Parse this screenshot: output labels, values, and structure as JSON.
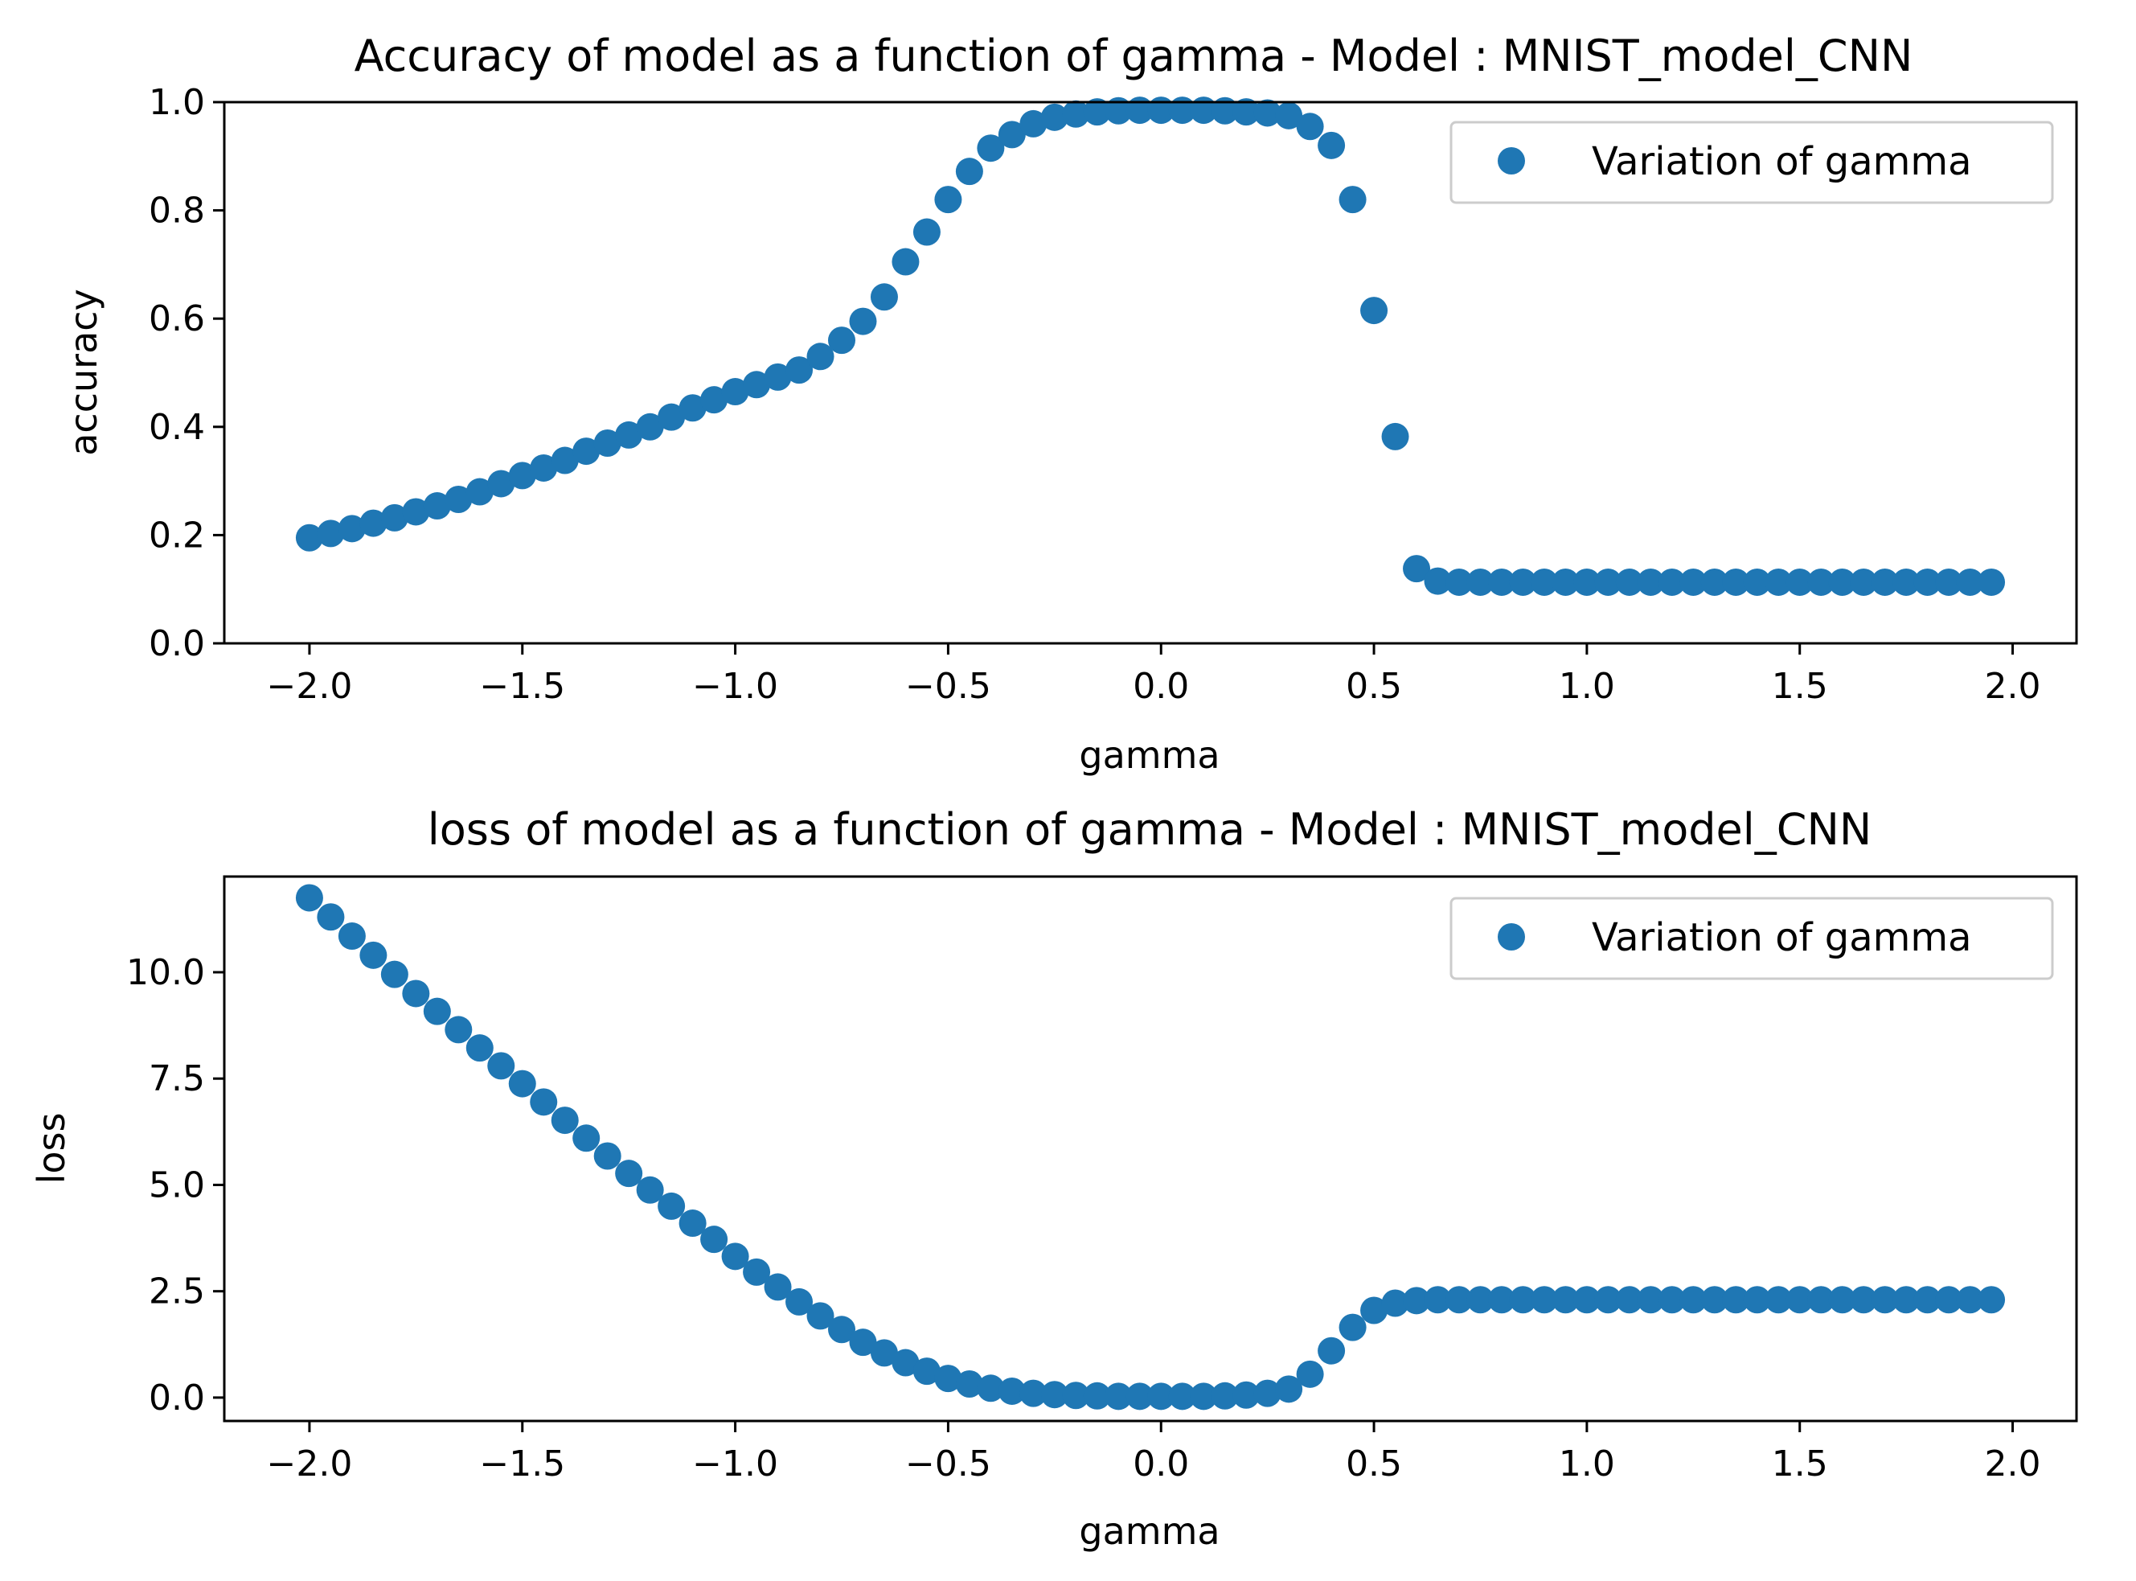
{
  "marker_color": "#1f77b4",
  "chart_data": [
    {
      "type": "scatter",
      "title": "Accuracy of model as a function of gamma - Model : MNIST_model_CNN",
      "xlabel": "gamma",
      "ylabel": "accuracy",
      "xlim": [
        -2.2,
        2.15
      ],
      "ylim": [
        0.0,
        1.0
      ],
      "xticks": [
        -2.0,
        -1.5,
        -1.0,
        -0.5,
        0.0,
        0.5,
        1.0,
        1.5,
        2.0
      ],
      "xtick_labels": [
        "−2.0",
        "−1.5",
        "−1.0",
        "−0.5",
        "0.0",
        "0.5",
        "1.0",
        "1.5",
        "2.0"
      ],
      "yticks": [
        0.0,
        0.2,
        0.4,
        0.6,
        0.8,
        1.0
      ],
      "ytick_labels": [
        "0.0",
        "0.2",
        "0.4",
        "0.6",
        "0.8",
        "1.0"
      ],
      "grid": false,
      "legend_position": "top-right",
      "series": [
        {
          "name": "Variation of gamma",
          "x": [
            -2.0,
            -1.95,
            -1.9,
            -1.85,
            -1.8,
            -1.75,
            -1.7,
            -1.65,
            -1.6,
            -1.55,
            -1.5,
            -1.45,
            -1.4,
            -1.35,
            -1.3,
            -1.25,
            -1.2,
            -1.15,
            -1.1,
            -1.05,
            -1.0,
            -0.95,
            -0.9,
            -0.85,
            -0.8,
            -0.75,
            -0.7,
            -0.65,
            -0.6,
            -0.55,
            -0.5,
            -0.45,
            -0.4,
            -0.35,
            -0.3,
            -0.25,
            -0.2,
            -0.15,
            -0.1,
            -0.05,
            0.0,
            0.05,
            0.1,
            0.15,
            0.2,
            0.25,
            0.3,
            0.35,
            0.4,
            0.45,
            0.5,
            0.55,
            0.6,
            0.65,
            0.7,
            0.75,
            0.8,
            0.85,
            0.9,
            0.95,
            1.0,
            1.05,
            1.1,
            1.15,
            1.2,
            1.25,
            1.3,
            1.35,
            1.4,
            1.45,
            1.5,
            1.55,
            1.6,
            1.65,
            1.7,
            1.75,
            1.8,
            1.85,
            1.9,
            1.95
          ],
          "y": [
            0.195,
            0.203,
            0.212,
            0.222,
            0.232,
            0.243,
            0.254,
            0.266,
            0.28,
            0.295,
            0.31,
            0.324,
            0.338,
            0.355,
            0.37,
            0.385,
            0.4,
            0.418,
            0.435,
            0.45,
            0.465,
            0.478,
            0.492,
            0.505,
            0.53,
            0.56,
            0.595,
            0.64,
            0.705,
            0.76,
            0.82,
            0.872,
            0.915,
            0.94,
            0.96,
            0.972,
            0.978,
            0.982,
            0.984,
            0.985,
            0.985,
            0.985,
            0.985,
            0.984,
            0.982,
            0.98,
            0.975,
            0.955,
            0.92,
            0.82,
            0.615,
            0.382,
            0.138,
            0.115,
            0.113,
            0.113,
            0.113,
            0.113,
            0.113,
            0.113,
            0.113,
            0.113,
            0.113,
            0.113,
            0.113,
            0.113,
            0.113,
            0.113,
            0.113,
            0.113,
            0.113,
            0.113,
            0.113,
            0.113,
            0.113,
            0.113,
            0.113,
            0.113,
            0.113,
            0.113
          ]
        }
      ]
    },
    {
      "type": "scatter",
      "title": "loss of model as a function of gamma - Model : MNIST_model_CNN",
      "xlabel": "gamma",
      "ylabel": "loss",
      "xlim": [
        -2.2,
        2.15
      ],
      "ylim": [
        -0.55,
        12.25
      ],
      "xticks": [
        -2.0,
        -1.5,
        -1.0,
        -0.5,
        0.0,
        0.5,
        1.0,
        1.5,
        2.0
      ],
      "xtick_labels": [
        "−2.0",
        "−1.5",
        "−1.0",
        "−0.5",
        "0.0",
        "0.5",
        "1.0",
        "1.5",
        "2.0"
      ],
      "yticks": [
        0.0,
        2.5,
        5.0,
        7.5,
        10.0
      ],
      "ytick_labels": [
        "0.0",
        "2.5",
        "5.0",
        "7.5",
        "10.0"
      ],
      "grid": false,
      "legend_position": "top-right",
      "series": [
        {
          "name": "Variation of gamma",
          "x": [
            -2.0,
            -1.95,
            -1.9,
            -1.85,
            -1.8,
            -1.75,
            -1.7,
            -1.65,
            -1.6,
            -1.55,
            -1.5,
            -1.45,
            -1.4,
            -1.35,
            -1.3,
            -1.25,
            -1.2,
            -1.15,
            -1.1,
            -1.05,
            -1.0,
            -0.95,
            -0.9,
            -0.85,
            -0.8,
            -0.75,
            -0.7,
            -0.65,
            -0.6,
            -0.55,
            -0.5,
            -0.45,
            -0.4,
            -0.35,
            -0.3,
            -0.25,
            -0.2,
            -0.15,
            -0.1,
            -0.05,
            0.0,
            0.05,
            0.1,
            0.15,
            0.2,
            0.25,
            0.3,
            0.35,
            0.4,
            0.45,
            0.5,
            0.55,
            0.6,
            0.65,
            0.7,
            0.75,
            0.8,
            0.85,
            0.9,
            0.95,
            1.0,
            1.05,
            1.1,
            1.15,
            1.2,
            1.25,
            1.3,
            1.35,
            1.4,
            1.45,
            1.5,
            1.55,
            1.6,
            1.65,
            1.7,
            1.75,
            1.8,
            1.85,
            1.9,
            1.95
          ],
          "y": [
            11.75,
            11.3,
            10.85,
            10.4,
            9.95,
            9.5,
            9.08,
            8.65,
            8.22,
            7.8,
            7.38,
            6.95,
            6.52,
            6.1,
            5.68,
            5.27,
            4.88,
            4.5,
            4.1,
            3.72,
            3.32,
            2.95,
            2.6,
            2.25,
            1.92,
            1.6,
            1.3,
            1.05,
            0.82,
            0.62,
            0.45,
            0.32,
            0.22,
            0.15,
            0.1,
            0.07,
            0.05,
            0.04,
            0.03,
            0.03,
            0.03,
            0.03,
            0.03,
            0.04,
            0.06,
            0.1,
            0.2,
            0.55,
            1.1,
            1.65,
            2.05,
            2.22,
            2.28,
            2.3,
            2.3,
            2.3,
            2.3,
            2.3,
            2.3,
            2.3,
            2.3,
            2.3,
            2.3,
            2.3,
            2.3,
            2.3,
            2.3,
            2.3,
            2.3,
            2.3,
            2.3,
            2.3,
            2.3,
            2.3,
            2.3,
            2.3,
            2.3,
            2.3,
            2.3,
            2.3
          ]
        }
      ]
    }
  ]
}
